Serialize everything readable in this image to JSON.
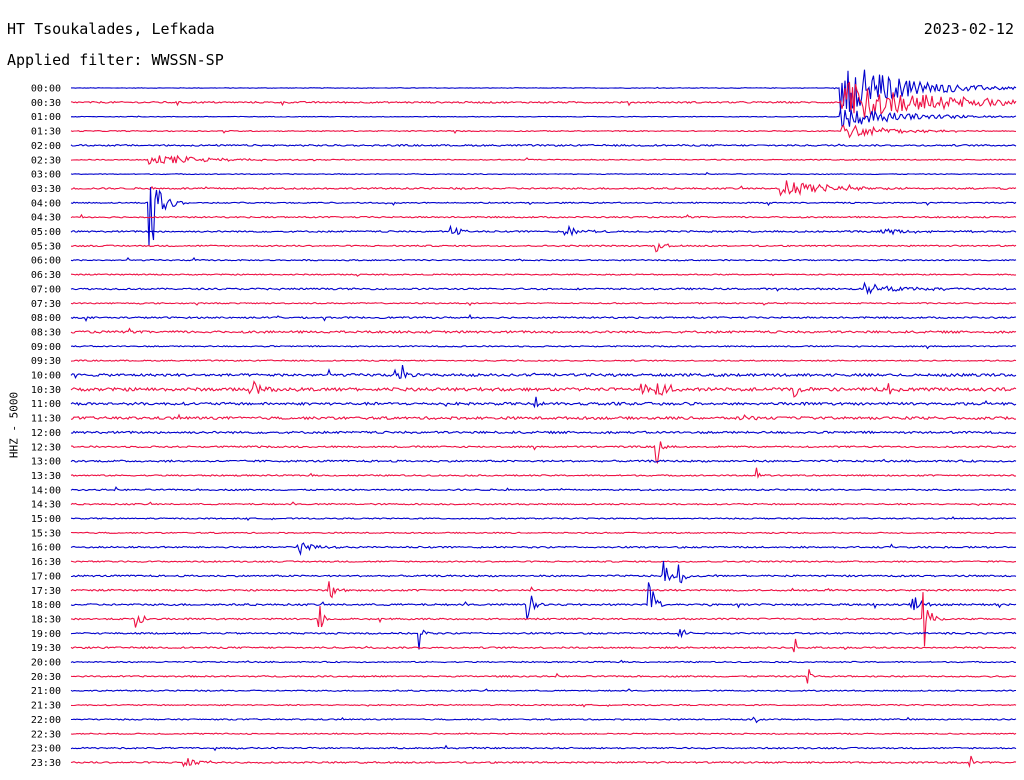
{
  "header": {
    "station": "HT Tsoukalades, Lefkada",
    "date": "2023-02-12",
    "filter": "Applied filter: WWSSN-SP"
  },
  "chart_data": {
    "type": "line",
    "title": "HT Tsoukalades, Lefkada",
    "ylabel": "HHZ - 5000",
    "y_tick_labels": [
      "00:00",
      "00:30",
      "01:00",
      "01:30",
      "02:00",
      "02:30",
      "03:00",
      "03:30",
      "04:00",
      "04:30",
      "05:00",
      "05:30",
      "06:00",
      "06:30",
      "07:00",
      "07:30",
      "08:00",
      "08:30",
      "09:00",
      "09:30",
      "10:00",
      "10:30",
      "11:00",
      "11:30",
      "12:00",
      "12:30",
      "13:00",
      "13:30",
      "14:00",
      "14:30",
      "15:00",
      "15:30",
      "16:00",
      "16:30",
      "17:00",
      "17:30",
      "18:00",
      "18:30",
      "19:00",
      "19:30",
      "20:00",
      "20:30",
      "21:00",
      "21:30",
      "22:00",
      "22:30",
      "23:00",
      "23:30"
    ],
    "trace_colors": [
      "#0000cc",
      "#ee1144"
    ],
    "noise_level": [
      0.3,
      0.8,
      0.3,
      0.5,
      0.8,
      0.5,
      0.4,
      0.8,
      0.6,
      0.7,
      0.8,
      0.7,
      0.6,
      0.6,
      0.8,
      0.6,
      0.8,
      1.1,
      0.6,
      0.6,
      1.3,
      1.6,
      1.3,
      1.3,
      1.1,
      0.8,
      0.9,
      0.7,
      0.7,
      0.7,
      0.6,
      0.6,
      0.8,
      0.7,
      0.8,
      0.8,
      0.9,
      0.8,
      0.8,
      0.8,
      0.6,
      0.7,
      0.6,
      0.6,
      0.6,
      0.6,
      0.7,
      0.8
    ],
    "events": [
      {
        "trace": "00:00",
        "x_min": 28.5,
        "amplitude": 30,
        "decay_min": 2.0
      },
      {
        "trace": "00:30",
        "x_min": 28.5,
        "amplitude": 22,
        "decay_min": 3.0
      },
      {
        "trace": "01:00",
        "x_min": 28.5,
        "amplitude": 12,
        "decay_min": 2.0
      },
      {
        "trace": "01:30",
        "x_min": 28.6,
        "amplitude": 8,
        "decay_min": 1.5
      },
      {
        "trace": "02:30",
        "x_min": 2.9,
        "amplitude": 6,
        "decay_min": 2.0
      },
      {
        "trace": "03:30",
        "x_min": 26.3,
        "amplitude": 10,
        "decay_min": 1.5
      },
      {
        "trace": "04:00",
        "x_min": 2.9,
        "amplitude": 66,
        "decay_min": 0.3
      },
      {
        "trace": "05:00",
        "x_min": 14.1,
        "amplitude": 7,
        "decay_min": 0.3
      },
      {
        "trace": "05:00",
        "x_min": 18.3,
        "amplitude": 6,
        "decay_min": 0.6
      },
      {
        "trace": "05:00",
        "x_min": 30.0,
        "amplitude": 3,
        "decay_min": 1.5
      },
      {
        "trace": "05:30",
        "x_min": 21.7,
        "amplitude": 9,
        "decay_min": 0.2
      },
      {
        "trace": "07:00",
        "x_min": 29.4,
        "amplitude": 6,
        "decay_min": 1.5
      },
      {
        "trace": "10:00",
        "x_min": 12.2,
        "amplitude": 14,
        "decay_min": 0.2
      },
      {
        "trace": "10:30",
        "x_min": 6.8,
        "amplitude": 15,
        "decay_min": 0.2
      },
      {
        "trace": "10:30",
        "x_min": 21.1,
        "amplitude": 20,
        "decay_min": 0.2
      },
      {
        "trace": "10:30",
        "x_min": 21.7,
        "amplitude": 18,
        "decay_min": 0.2
      },
      {
        "trace": "10:30",
        "x_min": 26.8,
        "amplitude": 10,
        "decay_min": 0.2
      },
      {
        "trace": "10:30",
        "x_min": 30.3,
        "amplitude": 9,
        "decay_min": 0.2
      },
      {
        "trace": "11:00",
        "x_min": 17.2,
        "amplitude": 9,
        "decay_min": 0.2
      },
      {
        "trace": "11:30",
        "x_min": 24.8,
        "amplitude": 8,
        "decay_min": 0.2
      },
      {
        "trace": "12:30",
        "x_min": 21.7,
        "amplitude": 28,
        "decay_min": 0.1
      },
      {
        "trace": "13:30",
        "x_min": 25.4,
        "amplitude": 8,
        "decay_min": 0.1
      },
      {
        "trace": "16:00",
        "x_min": 8.4,
        "amplitude": 8,
        "decay_min": 0.5
      },
      {
        "trace": "17:00",
        "x_min": 21.9,
        "amplitude": 20,
        "decay_min": 0.2
      },
      {
        "trace": "17:00",
        "x_min": 22.5,
        "amplitude": 12,
        "decay_min": 0.2
      },
      {
        "trace": "17:30",
        "x_min": 9.6,
        "amplitude": 12,
        "decay_min": 0.2
      },
      {
        "trace": "18:00",
        "x_min": 16.9,
        "amplitude": 20,
        "decay_min": 0.2
      },
      {
        "trace": "18:00",
        "x_min": 21.4,
        "amplitude": 30,
        "decay_min": 0.2
      },
      {
        "trace": "18:00",
        "x_min": 31.1,
        "amplitude": 30,
        "decay_min": 0.2
      },
      {
        "trace": "18:30",
        "x_min": 2.4,
        "amplitude": 12,
        "decay_min": 0.2
      },
      {
        "trace": "18:30",
        "x_min": 9.2,
        "amplitude": 22,
        "decay_min": 0.1
      },
      {
        "trace": "18:30",
        "x_min": 31.6,
        "amplitude": 30,
        "decay_min": 0.2
      },
      {
        "trace": "19:00",
        "x_min": 12.9,
        "amplitude": 20,
        "decay_min": 0.1
      },
      {
        "trace": "19:00",
        "x_min": 22.5,
        "amplitude": 6,
        "decay_min": 0.3
      },
      {
        "trace": "19:30",
        "x_min": 26.8,
        "amplitude": 18,
        "decay_min": 0.1
      },
      {
        "trace": "20:30",
        "x_min": 27.3,
        "amplitude": 10,
        "decay_min": 0.1
      },
      {
        "trace": "22:00",
        "x_min": 25.3,
        "amplitude": 6,
        "decay_min": 0.1
      },
      {
        "trace": "23:30",
        "x_min": 4.2,
        "amplitude": 7,
        "decay_min": 0.5
      },
      {
        "trace": "23:30",
        "x_min": 33.3,
        "amplitude": 12,
        "decay_min": 0.1
      }
    ]
  }
}
